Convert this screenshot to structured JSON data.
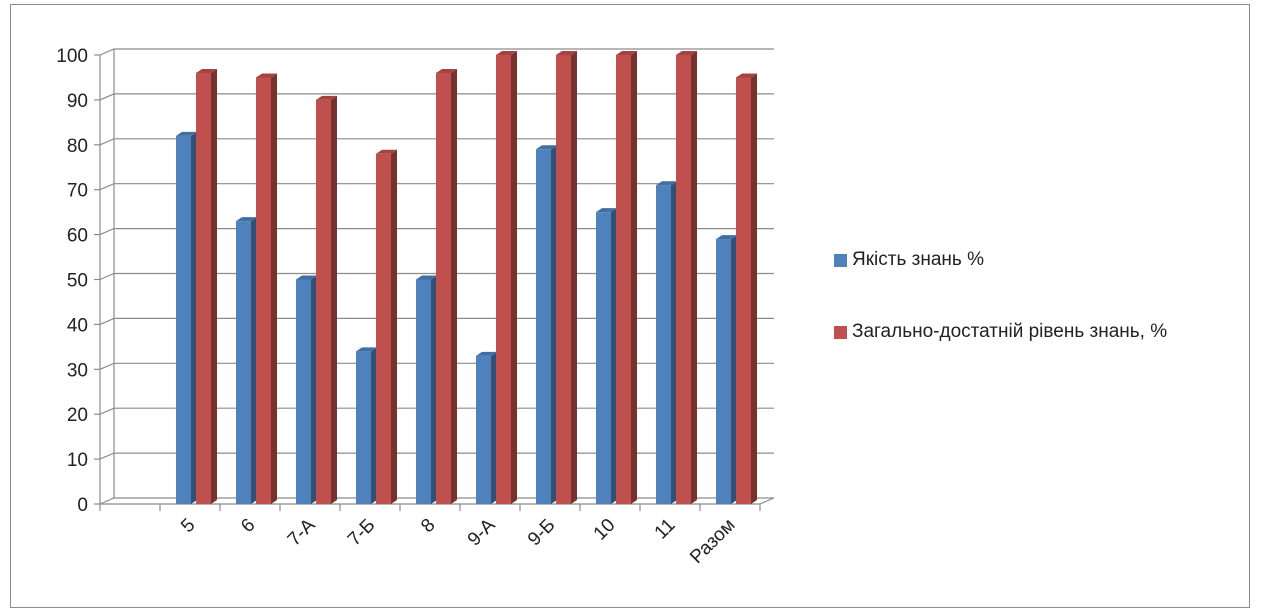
{
  "chart_data": {
    "type": "bar",
    "title": "",
    "xlabel": "",
    "ylabel": "",
    "categories": [
      "5",
      "6",
      "7-А",
      "7-Б",
      "8",
      "9-А",
      "9-Б",
      "10",
      "11",
      "Разом"
    ],
    "series": [
      {
        "name": "Якість знань %",
        "color": "#4f81bd",
        "values": [
          82,
          63,
          50,
          34,
          50,
          33,
          79,
          65,
          71,
          59
        ]
      },
      {
        "name": "Загально-достатній рівень знань, %",
        "color": "#c0504d",
        "values": [
          96,
          95,
          90,
          78,
          96,
          100,
          100,
          100,
          100,
          95
        ]
      }
    ],
    "ylim": [
      0,
      100
    ],
    "yticks": [
      0,
      10,
      20,
      30,
      40,
      50,
      60,
      70,
      80,
      90,
      100
    ],
    "grid": true,
    "legend_position": "right",
    "style": "3d-clustered-column"
  },
  "legend": {
    "items": [
      {
        "label": "Якість знань %",
        "color": "#4f81bd"
      },
      {
        "label": "Загально-достатній рівень знань, %",
        "color": "#c0504d"
      }
    ]
  }
}
